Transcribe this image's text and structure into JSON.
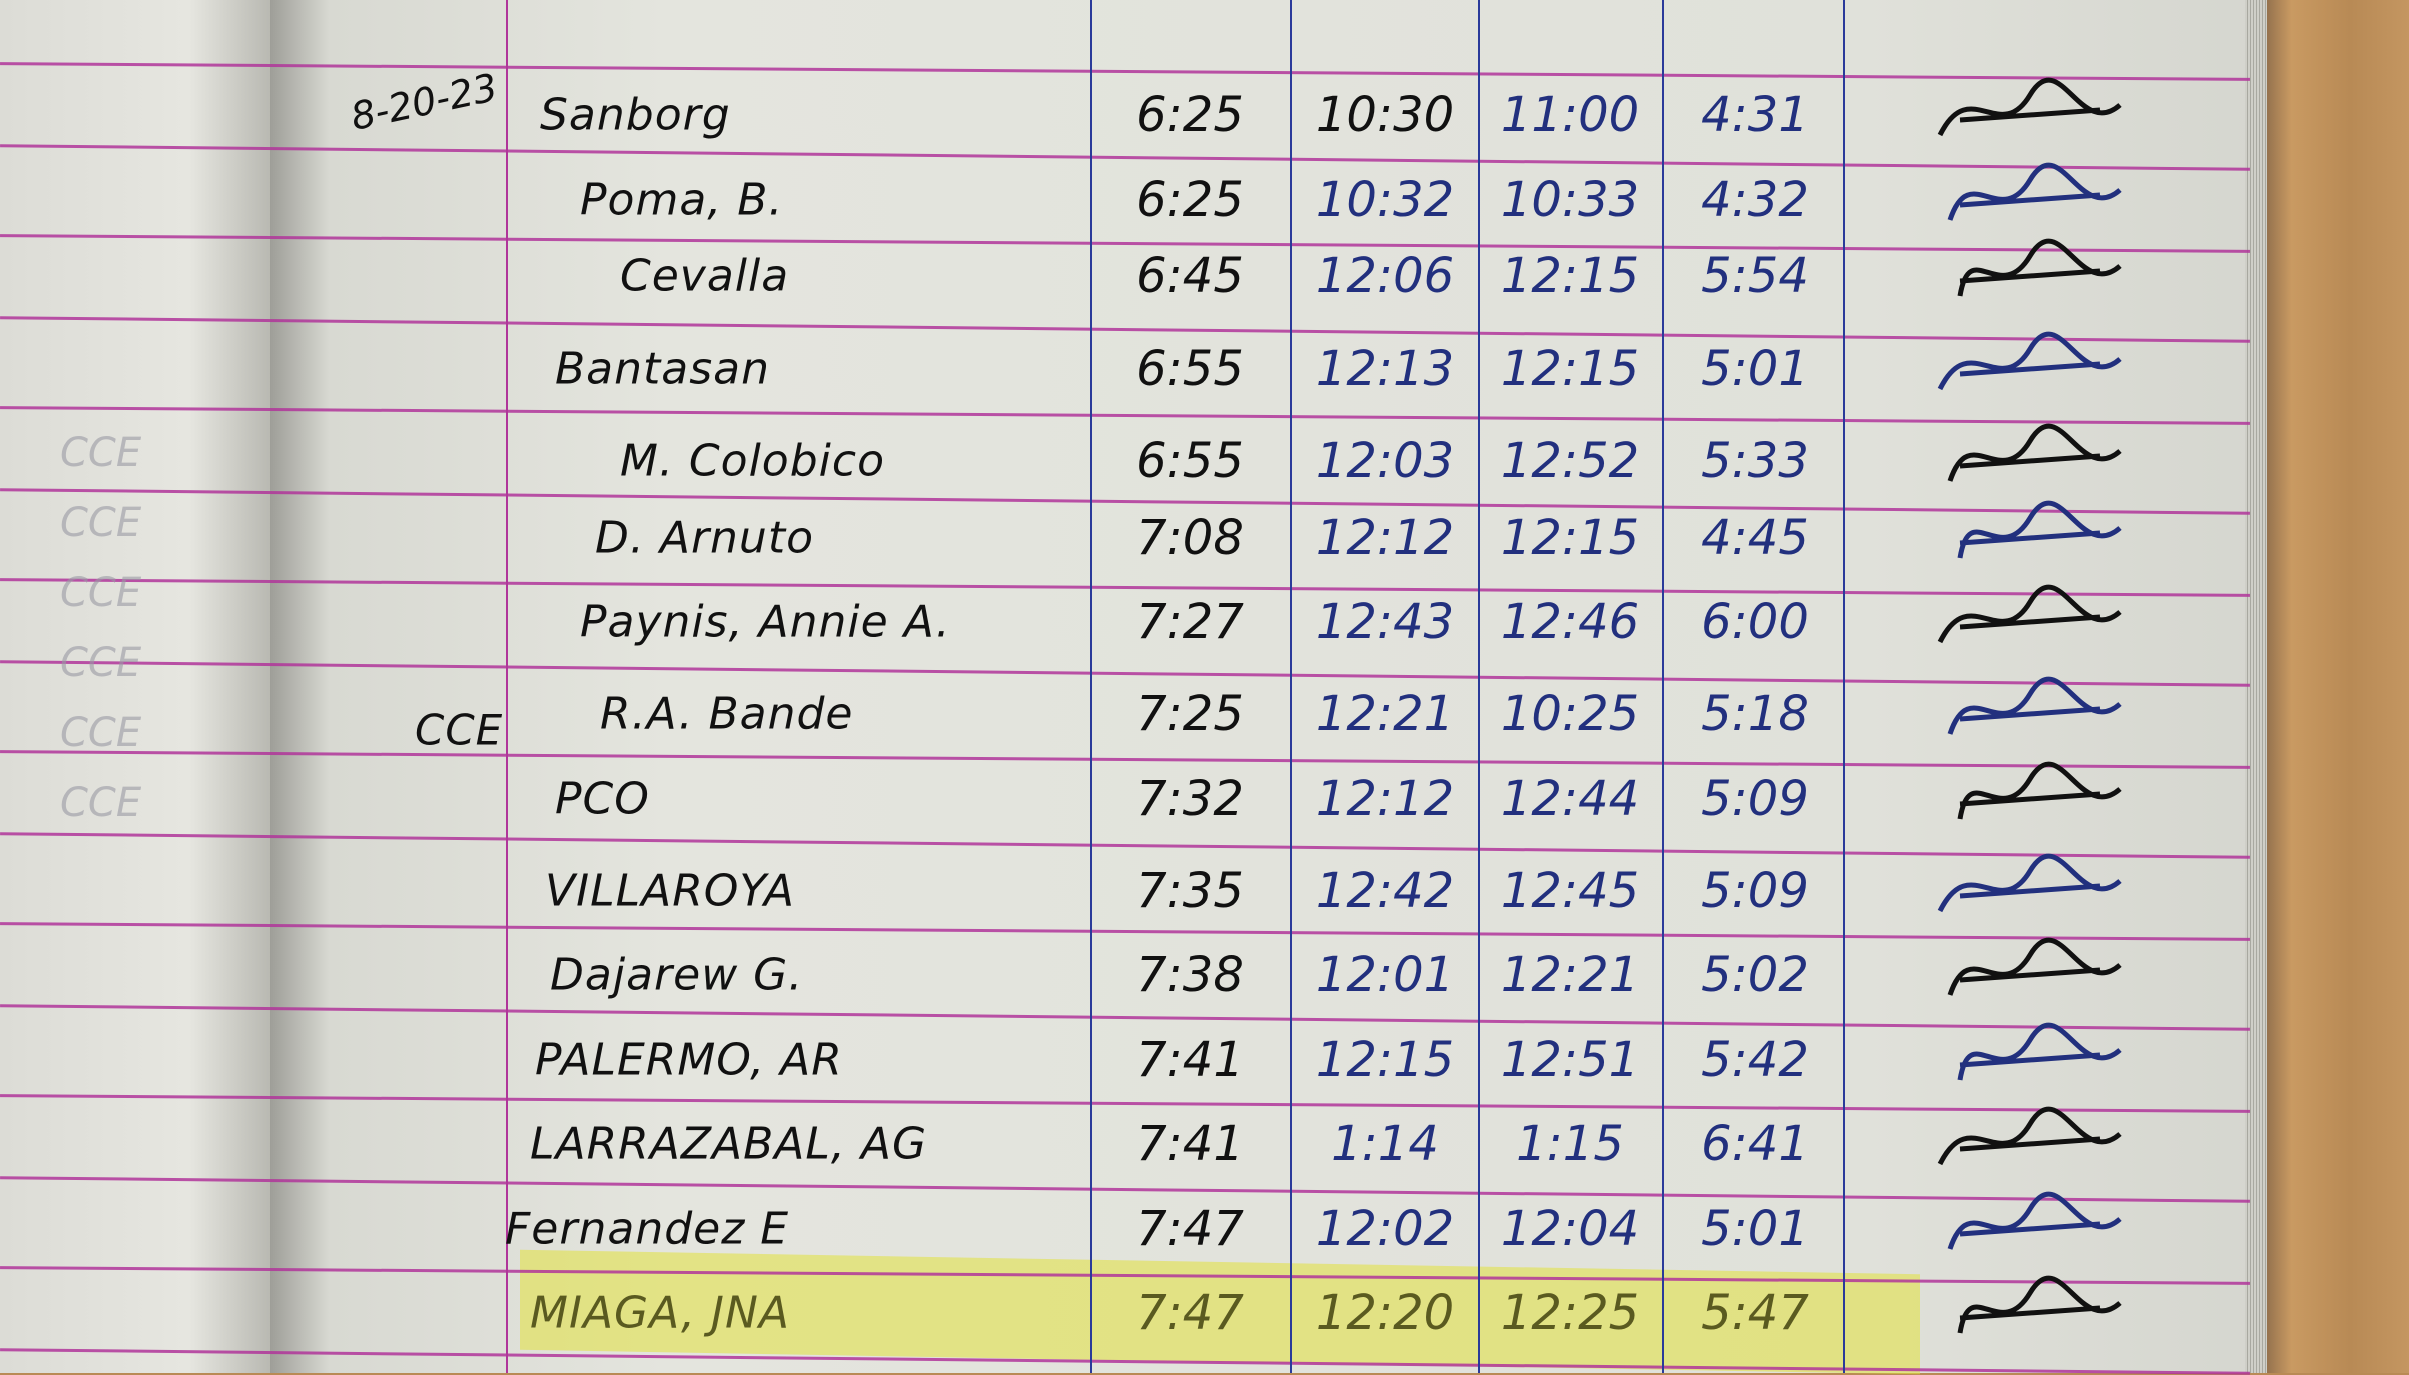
{
  "logbook": {
    "date": "8-20-23",
    "department_tag": "CCE",
    "left_page_faint_entries": [
      "CCE",
      "CCE",
      "CCE",
      "CCE",
      "CCE",
      "CCE"
    ],
    "rows": [
      {
        "name": "Sanborg",
        "time_in_am": "6:25",
        "time_out_am": "10:30",
        "time_in_pm": "11:00",
        "time_out_pm": "4:31"
      },
      {
        "name": "Poma, B.",
        "time_in_am": "6:25",
        "time_out_am": "10:32",
        "time_in_pm": "10:33",
        "time_out_pm": "4:32"
      },
      {
        "name": "Cevalla",
        "time_in_am": "6:45",
        "time_out_am": "12:06",
        "time_in_pm": "12:15",
        "time_out_pm": "5:54"
      },
      {
        "name": "Bantasan",
        "time_in_am": "6:55",
        "time_out_am": "12:13",
        "time_in_pm": "12:15",
        "time_out_pm": "5:01"
      },
      {
        "name": "M. Colobico",
        "time_in_am": "6:55",
        "time_out_am": "12:03",
        "time_in_pm": "12:52",
        "time_out_pm": "5:33"
      },
      {
        "name": "D. Arnuto",
        "time_in_am": "7:08",
        "time_out_am": "12:12",
        "time_in_pm": "12:15",
        "time_out_pm": "4:45"
      },
      {
        "name": "Paynis, Annie A.",
        "time_in_am": "7:27",
        "time_out_am": "12:43",
        "time_in_pm": "12:46",
        "time_out_pm": "6:00"
      },
      {
        "name": "R.A. Bande",
        "time_in_am": "7:25",
        "time_out_am": "12:21",
        "time_in_pm": "10:25",
        "time_out_pm": "5:18"
      },
      {
        "name": "PCO",
        "time_in_am": "7:32",
        "time_out_am": "12:12",
        "time_in_pm": "12:44",
        "time_out_pm": "5:09"
      },
      {
        "name": "VILLAROYA",
        "time_in_am": "7:35",
        "time_out_am": "12:42",
        "time_in_pm": "12:45",
        "time_out_pm": "5:09"
      },
      {
        "name": "Dajarew G.",
        "time_in_am": "7:38",
        "time_out_am": "12:01",
        "time_in_pm": "12:21",
        "time_out_pm": "5:02"
      },
      {
        "name": "PALERMO, AR",
        "time_in_am": "7:41",
        "time_out_am": "12:15",
        "time_in_pm": "12:51",
        "time_out_pm": "5:42"
      },
      {
        "name": "LARRAZABAL, AG",
        "time_in_am": "7:41",
        "time_out_am": "1:14",
        "time_in_pm": "1:15",
        "time_out_pm": "6:41"
      },
      {
        "name": "Fernandez E",
        "time_in_am": "7:47",
        "time_out_am": "12:02",
        "time_in_pm": "12:04",
        "time_out_pm": "5:01"
      },
      {
        "name": "MIAGA, JNA",
        "time_in_am": "7:47",
        "time_out_am": "12:20",
        "time_in_pm": "12:25",
        "time_out_pm": "5:47",
        "highlighted": true
      }
    ]
  },
  "colors": {
    "ink_black": "#111111",
    "ink_blue": "#22307e",
    "rule_line": "#b0359a",
    "column_line": "#2a3a9a",
    "highlight": "#e1e13c"
  }
}
